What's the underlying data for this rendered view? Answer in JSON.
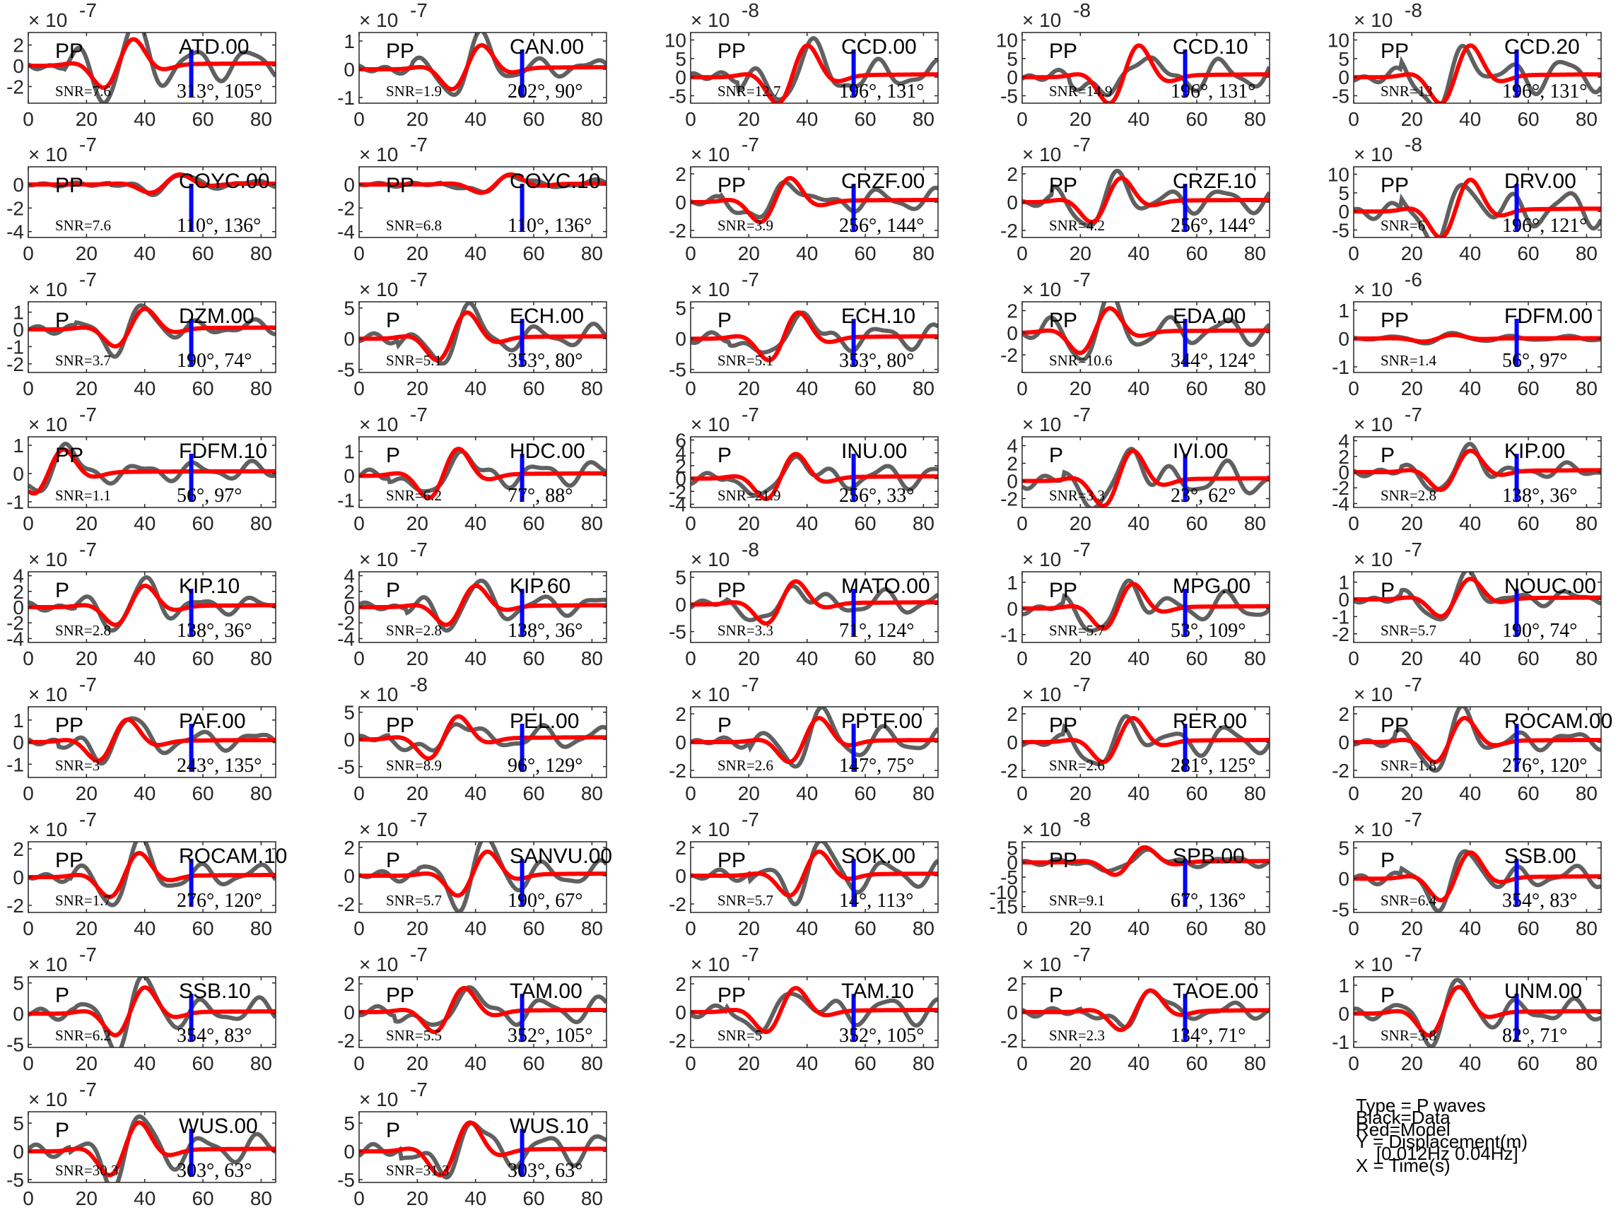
{
  "legend": {
    "type": "Type = P waves",
    "black": "Black=Data",
    "red": "Red=Model",
    "y": "Y = Displacement(m)",
    "band": "    [0.012Hz 0.04Hz]",
    "x": "X = Time(s)"
  },
  "colors": {
    "data": "#606060",
    "model": "#ff0000",
    "marker": "#0000ff",
    "axis": "#262626"
  },
  "chart_data": {
    "type": "line",
    "x_ticks": [
      "0",
      "20",
      "40",
      "60",
      "80"
    ],
    "xlim": [
      0,
      85
    ],
    "marker_x": 56,
    "panels": [
      {
        "station": "ATD.00",
        "phase": "PP",
        "snr": "SNR=7.6",
        "angles": "313°, 105°",
        "exp": "-7",
        "ylim": [
          -3.6,
          3.2
        ],
        "yticks": [
          "2",
          "0",
          "-2"
        ],
        "ytick_vals": [
          2,
          0,
          -2
        ],
        "amp": 3.0,
        "t0": 32,
        "seed": 1
      },
      {
        "station": "CAN.00",
        "phase": "PP",
        "snr": "SNR=1.9",
        "angles": "202°, 90°",
        "exp": "-7",
        "ylim": [
          -1.2,
          1.3
        ],
        "yticks": [
          "1",
          "0",
          "-1"
        ],
        "ytick_vals": [
          1,
          0,
          -1
        ],
        "amp": 1.0,
        "t0": 38,
        "seed": 2
      },
      {
        "station": "CCD.00",
        "phase": "PP",
        "snr": "SNR=12.7",
        "angles": "196°, 131°",
        "exp": "-8",
        "ylim": [
          -7,
          12
        ],
        "yticks": [
          "10",
          "5",
          "0",
          "-5"
        ],
        "ytick_vals": [
          10,
          5,
          0,
          -5
        ],
        "amp": 10,
        "t0": 36,
        "seed": 3
      },
      {
        "station": "CCD.10",
        "phase": "PP",
        "snr": "SNR=14.9",
        "angles": "196°, 131°",
        "exp": "-8",
        "ylim": [
          -7,
          12
        ],
        "yticks": [
          "10",
          "5",
          "0",
          "-5"
        ],
        "ytick_vals": [
          10,
          5,
          0,
          -5
        ],
        "amp": 10,
        "t0": 36,
        "seed": 4
      },
      {
        "station": "CCD.20",
        "phase": "PP",
        "snr": "SNR=13",
        "angles": "196°, 131°",
        "exp": "-8",
        "ylim": [
          -7,
          12
        ],
        "yticks": [
          "10",
          "5",
          "0",
          "-5"
        ],
        "ytick_vals": [
          10,
          5,
          0,
          -5
        ],
        "amp": 10,
        "t0": 36,
        "seed": 5
      },
      {
        "station": "COYC.00",
        "phase": "PP",
        "snr": "SNR=7.6",
        "angles": "110°, 136°",
        "exp": "-7",
        "ylim": [
          -4.5,
          1.5
        ],
        "yticks": [
          "0",
          "-2",
          "-4"
        ],
        "ytick_vals": [
          0,
          -2,
          -4
        ],
        "amp": 1.0,
        "t0": 48,
        "seed": 6
      },
      {
        "station": "COYC.10",
        "phase": "PP",
        "snr": "SNR=6.8",
        "angles": "110°, 136°",
        "exp": "-7",
        "ylim": [
          -4.5,
          1.5
        ],
        "yticks": [
          "0",
          "-2",
          "-4"
        ],
        "ytick_vals": [
          0,
          -2,
          -4
        ],
        "amp": 1.0,
        "t0": 48,
        "seed": 7
      },
      {
        "station": "CRZF.00",
        "phase": "PP",
        "snr": "SNR=3.9",
        "angles": "256°, 144°",
        "exp": "-7",
        "ylim": [
          -2.5,
          2.5
        ],
        "yticks": [
          "2",
          "0",
          "-2"
        ],
        "ytick_vals": [
          2,
          0,
          -2
        ],
        "amp": 2.0,
        "t0": 30,
        "seed": 8
      },
      {
        "station": "CRZF.10",
        "phase": "PP",
        "snr": "SNR=4.2",
        "angles": "256°, 144°",
        "exp": "-7",
        "ylim": [
          -2.5,
          2.5
        ],
        "yticks": [
          "2",
          "0",
          "-2"
        ],
        "ytick_vals": [
          2,
          0,
          -2
        ],
        "amp": 2.0,
        "t0": 30,
        "seed": 9
      },
      {
        "station": "DRV.00",
        "phase": "PP",
        "snr": "SNR=6",
        "angles": "196°, 121°",
        "exp": "-8",
        "ylim": [
          -7,
          12
        ],
        "yticks": [
          "10",
          "5",
          "0",
          "-5"
        ],
        "ytick_vals": [
          10,
          5,
          0,
          -5
        ],
        "amp": 10,
        "t0": 36,
        "seed": 10
      },
      {
        "station": "DZM.00",
        "phase": "P",
        "snr": "SNR=3.7",
        "angles": "190°, 74°",
        "exp": "-7",
        "ylim": [
          -2.5,
          1.6
        ],
        "yticks": [
          "1",
          "0",
          "-1",
          "-2"
        ],
        "ytick_vals": [
          1,
          0,
          -1,
          -2
        ],
        "amp": 1.4,
        "t0": 36,
        "seed": 11
      },
      {
        "station": "ECH.00",
        "phase": "P",
        "snr": "SNR=5.1",
        "angles": "353°, 80°",
        "exp": "-7",
        "ylim": [
          -5.5,
          6
        ],
        "yticks": [
          "5",
          "0",
          "-5"
        ],
        "ytick_vals": [
          5,
          0,
          -5
        ],
        "amp": 5,
        "t0": 33,
        "seed": 12
      },
      {
        "station": "ECH.10",
        "phase": "P",
        "snr": "SNR=5.1",
        "angles": "353°, 80°",
        "exp": "-7",
        "ylim": [
          -5.5,
          6
        ],
        "yticks": [
          "5",
          "0",
          "-5"
        ],
        "ytick_vals": [
          5,
          0,
          -5
        ],
        "amp": 5,
        "t0": 33,
        "seed": 13
      },
      {
        "station": "EDA.00",
        "phase": "PP",
        "snr": "SNR=10.6",
        "angles": "344°, 124°",
        "exp": "-7",
        "ylim": [
          -3.6,
          2.8
        ],
        "yticks": [
          "2",
          "0",
          "-2"
        ],
        "ytick_vals": [
          2,
          0,
          -2
        ],
        "amp": 2.6,
        "t0": 26,
        "seed": 14
      },
      {
        "station": "FDFM.00",
        "phase": "PP",
        "snr": "SNR=1.4",
        "angles": "56°, 97°",
        "exp": "-6",
        "ylim": [
          -1.2,
          1.3
        ],
        "yticks": [
          "1",
          "0",
          "-1"
        ],
        "ytick_vals": [
          1,
          0,
          -1
        ],
        "amp": 0.15,
        "t0": 30,
        "seed": 15
      },
      {
        "station": "FDFM.10",
        "phase": "PP",
        "snr": "SNR=1.1",
        "angles": "56°, 97°",
        "exp": "-7",
        "ylim": [
          -1.2,
          1.3
        ],
        "yticks": [
          "1",
          "0",
          "-1"
        ],
        "ytick_vals": [
          1,
          0,
          -1
        ],
        "amp": 1.0,
        "t0": 8,
        "seed": 16
      },
      {
        "station": "HDC.00",
        "phase": "P",
        "snr": "SNR=6.2",
        "angles": "77°, 88°",
        "exp": "-7",
        "ylim": [
          -1.3,
          1.6
        ],
        "yticks": [
          "1",
          "0",
          "-1"
        ],
        "ytick_vals": [
          1,
          0,
          -1
        ],
        "amp": 1.3,
        "t0": 30,
        "seed": 17
      },
      {
        "station": "INU.00",
        "phase": "P",
        "snr": "SNR=21.9",
        "angles": "256°, 33°",
        "exp": "-7",
        "ylim": [
          -4.5,
          6.5
        ],
        "yticks": [
          "6",
          "4",
          "2",
          "0",
          "-2",
          "-4"
        ],
        "ytick_vals": [
          6,
          4,
          2,
          0,
          -2,
          -4
        ],
        "amp": 4.5,
        "t0": 32,
        "seed": 18
      },
      {
        "station": "IVI.00",
        "phase": "P",
        "snr": "SNR=3.3",
        "angles": "23°, 62°",
        "exp": "-7",
        "ylim": [
          -3,
          5
        ],
        "yticks": [
          "4",
          "2",
          "0",
          "-2"
        ],
        "ytick_vals": [
          4,
          2,
          0,
          -2
        ],
        "amp": 4,
        "t0": 34,
        "seed": 19
      },
      {
        "station": "KIP.00",
        "phase": "P",
        "snr": "SNR=2.8",
        "angles": "138°, 36°",
        "exp": "-7",
        "ylim": [
          -4.5,
          4.5
        ],
        "yticks": [
          "4",
          "2",
          "0",
          "-2",
          "-4"
        ],
        "ytick_vals": [
          4,
          2,
          0,
          -2,
          -4
        ],
        "amp": 3.2,
        "t0": 36,
        "seed": 20
      },
      {
        "station": "KIP.10",
        "phase": "P",
        "snr": "SNR=2.8",
        "angles": "138°, 36°",
        "exp": "-7",
        "ylim": [
          -4.5,
          4.5
        ],
        "yticks": [
          "4",
          "2",
          "0",
          "-2",
          "-4"
        ],
        "ytick_vals": [
          4,
          2,
          0,
          -2,
          -4
        ],
        "amp": 3.2,
        "t0": 36,
        "seed": 21
      },
      {
        "station": "KIP.60",
        "phase": "P",
        "snr": "SNR=2.8",
        "angles": "138°, 36°",
        "exp": "-7",
        "ylim": [
          -4.5,
          4.5
        ],
        "yticks": [
          "4",
          "2",
          "0",
          "-2",
          "-4"
        ],
        "ytick_vals": [
          4,
          2,
          0,
          -2,
          -4
        ],
        "amp": 3.2,
        "t0": 36,
        "seed": 22
      },
      {
        "station": "MATO.00",
        "phase": "PP",
        "snr": "SNR=3.3",
        "angles": "71°, 124°",
        "exp": "-8",
        "ylim": [
          -7,
          6
        ],
        "yticks": [
          "5",
          "0",
          "-5"
        ],
        "ytick_vals": [
          5,
          0,
          -5
        ],
        "amp": 5,
        "t0": 32,
        "seed": 23
      },
      {
        "station": "MPG.00",
        "phase": "PP",
        "snr": "SNR=5.7",
        "angles": "53°, 109°",
        "exp": "-7",
        "ylim": [
          -1.3,
          1.4
        ],
        "yticks": [
          "1",
          "0",
          "-1"
        ],
        "ytick_vals": [
          1,
          0,
          -1
        ],
        "amp": 1.1,
        "t0": 34,
        "seed": 24
      },
      {
        "station": "NOUC.00",
        "phase": "P",
        "snr": "SNR=5.7",
        "angles": "190°, 74°",
        "exp": "-7",
        "ylim": [
          -2.5,
          1.6
        ],
        "yticks": [
          "1",
          "0",
          "-1",
          "-2"
        ],
        "ytick_vals": [
          1,
          0,
          -1,
          -2
        ],
        "amp": 1.4,
        "t0": 36,
        "seed": 25
      },
      {
        "station": "PAF.00",
        "phase": "PP",
        "snr": "SNR=3",
        "angles": "243°, 135°",
        "exp": "-7",
        "ylim": [
          -1.6,
          1.6
        ],
        "yticks": [
          "1",
          "0",
          "-1"
        ],
        "ytick_vals": [
          1,
          0,
          -1
        ],
        "amp": 1.2,
        "t0": 30,
        "seed": 26
      },
      {
        "station": "PEL.00",
        "phase": "PP",
        "snr": "SNR=8.9",
        "angles": "96°, 129°",
        "exp": "-8",
        "ylim": [
          -7,
          6
        ],
        "yticks": [
          "5",
          "0",
          "-5"
        ],
        "ytick_vals": [
          5,
          0,
          -5
        ],
        "amp": 5,
        "t0": 30,
        "seed": 27
      },
      {
        "station": "PPTF.00",
        "phase": "P",
        "snr": "SNR=2.6",
        "angles": "147°, 75°",
        "exp": "-7",
        "ylim": [
          -2.5,
          2.5
        ],
        "yticks": [
          "2",
          "0",
          "-2"
        ],
        "ytick_vals": [
          2,
          0,
          -2
        ],
        "amp": 2.0,
        "t0": 40,
        "seed": 28
      },
      {
        "station": "RER.00",
        "phase": "PP",
        "snr": "SNR=2.6",
        "angles": "281°, 125°",
        "exp": "-7",
        "ylim": [
          -2.5,
          2.5
        ],
        "yticks": [
          "2",
          "0",
          "-2"
        ],
        "ytick_vals": [
          2,
          0,
          -2
        ],
        "amp": 2.0,
        "t0": 34,
        "seed": 29
      },
      {
        "station": "ROCAM.00",
        "phase": "PP",
        "snr": "SNR=1.8",
        "angles": "276°, 120°",
        "exp": "-7",
        "ylim": [
          -2.5,
          2.5
        ],
        "yticks": [
          "2",
          "0",
          "-2"
        ],
        "ytick_vals": [
          2,
          0,
          -2
        ],
        "amp": 2.0,
        "t0": 34,
        "seed": 30
      },
      {
        "station": "ROCAM.10",
        "phase": "PP",
        "snr": "SNR=1.7",
        "angles": "276°, 120°",
        "exp": "-7",
        "ylim": [
          -2.5,
          2.5
        ],
        "yticks": [
          "2",
          "0",
          "-2"
        ],
        "ytick_vals": [
          2,
          0,
          -2
        ],
        "amp": 2.0,
        "t0": 34,
        "seed": 31
      },
      {
        "station": "SANVU.00",
        "phase": "P",
        "snr": "SNR=5.7",
        "angles": "190°, 67°",
        "exp": "-7",
        "ylim": [
          -2.6,
          2.4
        ],
        "yticks": [
          "2",
          "0",
          "-2"
        ],
        "ytick_vals": [
          2,
          0,
          -2
        ],
        "amp": 2.0,
        "t0": 40,
        "seed": 32
      },
      {
        "station": "SOK.00",
        "phase": "PP",
        "snr": "SNR=5.7",
        "angles": "14°, 113°",
        "exp": "-7",
        "ylim": [
          -2.6,
          2.4
        ],
        "yticks": [
          "2",
          "0",
          "-2"
        ],
        "ytick_vals": [
          2,
          0,
          -2
        ],
        "amp": 2.0,
        "t0": 40,
        "seed": 33
      },
      {
        "station": "SPB.00",
        "phase": "PP",
        "snr": "SNR=9.1",
        "angles": "67°, 136°",
        "exp": "-8",
        "ylim": [
          -17,
          7
        ],
        "yticks": [
          "5",
          "0",
          "-5",
          "-10",
          "-15"
        ],
        "ytick_vals": [
          5,
          0,
          -5,
          -10,
          -15
        ],
        "amp": 6,
        "t0": 38,
        "seed": 34
      },
      {
        "station": "SSB.00",
        "phase": "P",
        "snr": "SNR=6.4",
        "angles": "354°, 83°",
        "exp": "-7",
        "ylim": [
          -5.5,
          6
        ],
        "yticks": [
          "5",
          "0",
          "-5"
        ],
        "ytick_vals": [
          5,
          0,
          -5
        ],
        "amp": 5,
        "t0": 36,
        "seed": 35
      },
      {
        "station": "SSB.10",
        "phase": "P",
        "snr": "SNR=6.2",
        "angles": "354°, 83°",
        "exp": "-7",
        "ylim": [
          -5.5,
          6
        ],
        "yticks": [
          "5",
          "0",
          "-5"
        ],
        "ytick_vals": [
          5,
          0,
          -5
        ],
        "amp": 5,
        "t0": 36,
        "seed": 36
      },
      {
        "station": "TAM.00",
        "phase": "PP",
        "snr": "SNR=5.5",
        "angles": "352°, 105°",
        "exp": "-7",
        "ylim": [
          -2.5,
          2.5
        ],
        "yticks": [
          "2",
          "0",
          "-2"
        ],
        "ytick_vals": [
          2,
          0,
          -2
        ],
        "amp": 2.0,
        "t0": 32,
        "seed": 37
      },
      {
        "station": "TAM.10",
        "phase": "PP",
        "snr": "SNR=5",
        "angles": "352°, 105°",
        "exp": "-7",
        "ylim": [
          -2.5,
          2.5
        ],
        "yticks": [
          "2",
          "0",
          "-2"
        ],
        "ytick_vals": [
          2,
          0,
          -2
        ],
        "amp": 2.0,
        "t0": 32,
        "seed": 38
      },
      {
        "station": "TAOE.00",
        "phase": "P",
        "snr": "SNR=2.3",
        "angles": "134°, 71°",
        "exp": "-7",
        "ylim": [
          -2.5,
          2.5
        ],
        "yticks": [
          "2",
          "0",
          "-2"
        ],
        "ytick_vals": [
          2,
          0,
          -2
        ],
        "amp": 1.8,
        "t0": 40,
        "seed": 39
      },
      {
        "station": "UNM.00",
        "phase": "P",
        "snr": "SNR=3.8",
        "angles": "82°, 71°",
        "exp": "-7",
        "ylim": [
          -1.2,
          1.3
        ],
        "yticks": [
          "1",
          "0",
          "-1"
        ],
        "ytick_vals": [
          1,
          0,
          -1
        ],
        "amp": 1.1,
        "t0": 32,
        "seed": 40
      },
      {
        "station": "WUS.00",
        "phase": "P",
        "snr": "SNR=30.3",
        "angles": "303°, 63°",
        "exp": "-7",
        "ylim": [
          -5.5,
          7
        ],
        "yticks": [
          "5",
          "0",
          "-5"
        ],
        "ytick_vals": [
          5,
          0,
          -5
        ],
        "amp": 6,
        "t0": 34,
        "seed": 41
      },
      {
        "station": "WUS.10",
        "phase": "P",
        "snr": "SNR=31.3",
        "angles": "303°, 63°",
        "exp": "-7",
        "ylim": [
          -5.5,
          7
        ],
        "yticks": [
          "5",
          "0",
          "-5"
        ],
        "ytick_vals": [
          5,
          0,
          -5
        ],
        "amp": 6,
        "t0": 34,
        "seed": 42
      }
    ]
  }
}
